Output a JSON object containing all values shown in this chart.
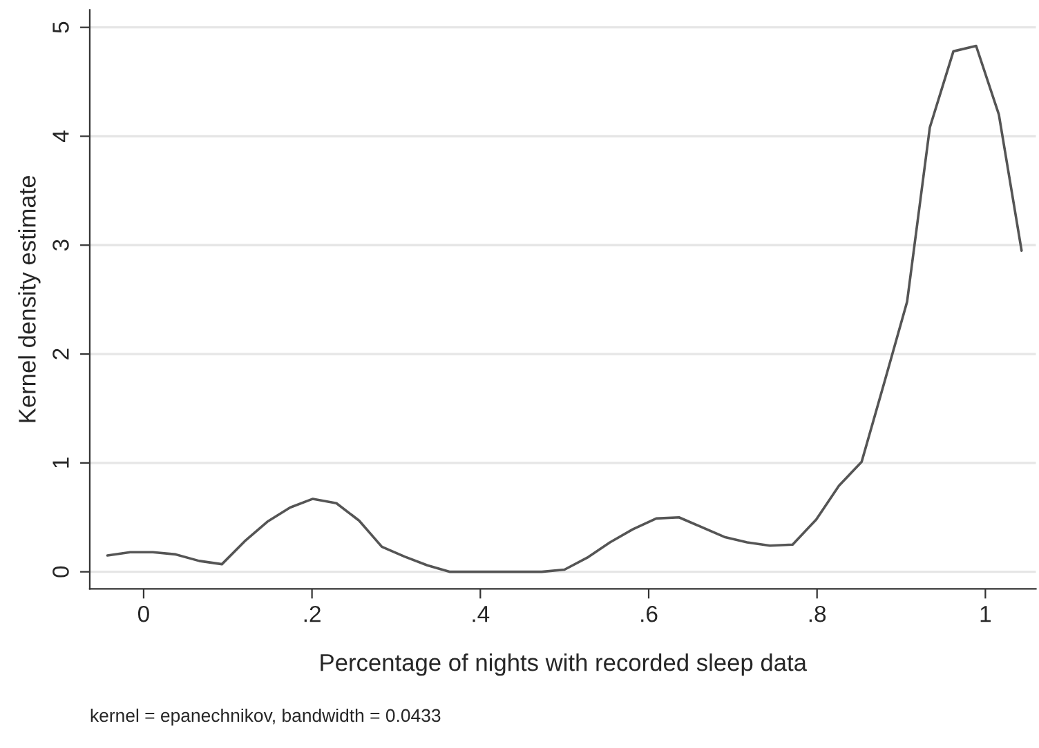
{
  "chart_data": {
    "type": "line",
    "xlabel": "Percentage of nights with recorded sleep data",
    "ylabel": "Kernel density estimate",
    "annotations": [
      "kernel = epanechnikov, bandwidth = 0.0433"
    ],
    "x": [
      -0.043,
      -0.016,
      0.011,
      0.038,
      0.066,
      0.093,
      0.12,
      0.147,
      0.174,
      0.201,
      0.229,
      0.256,
      0.283,
      0.31,
      0.337,
      0.364,
      0.391,
      0.419,
      0.446,
      0.473,
      0.5,
      0.527,
      0.554,
      0.581,
      0.609,
      0.636,
      0.663,
      0.69,
      0.717,
      0.744,
      0.771,
      0.799,
      0.826,
      0.853,
      0.88,
      0.907,
      0.934,
      0.962,
      0.989,
      1.016,
      1.043
    ],
    "series": [
      {
        "color": "#555555",
        "values": [
          0.15,
          0.18,
          0.18,
          0.16,
          0.1,
          0.07,
          0.28,
          0.46,
          0.59,
          0.67,
          0.63,
          0.47,
          0.23,
          0.14,
          0.06,
          0,
          0,
          0,
          0,
          0,
          0.02,
          0.13,
          0.27,
          0.39,
          0.49,
          0.5,
          0.41,
          0.32,
          0.27,
          0.24,
          0.25,
          0.48,
          0.79,
          1.01,
          1.74,
          2.48,
          4.08,
          4.78,
          4.83,
          4.2,
          2.95
        ]
      }
    ],
    "xlim": [
      -0.064,
      1.06
    ],
    "ylim": [
      -0.157,
      5.16
    ],
    "xticks": [
      0,
      {
        "value": 0.2,
        "label": ".2"
      },
      {
        "value": 0.4,
        "label": ".4"
      },
      {
        "value": 0.6,
        "label": ".6"
      },
      {
        "value": 0.8,
        "label": ".8"
      },
      1
    ],
    "yticks": [
      0,
      1,
      2,
      3,
      4,
      5
    ],
    "grid": "y",
    "marker": "none",
    "line_style": "solid",
    "legend": false
  }
}
